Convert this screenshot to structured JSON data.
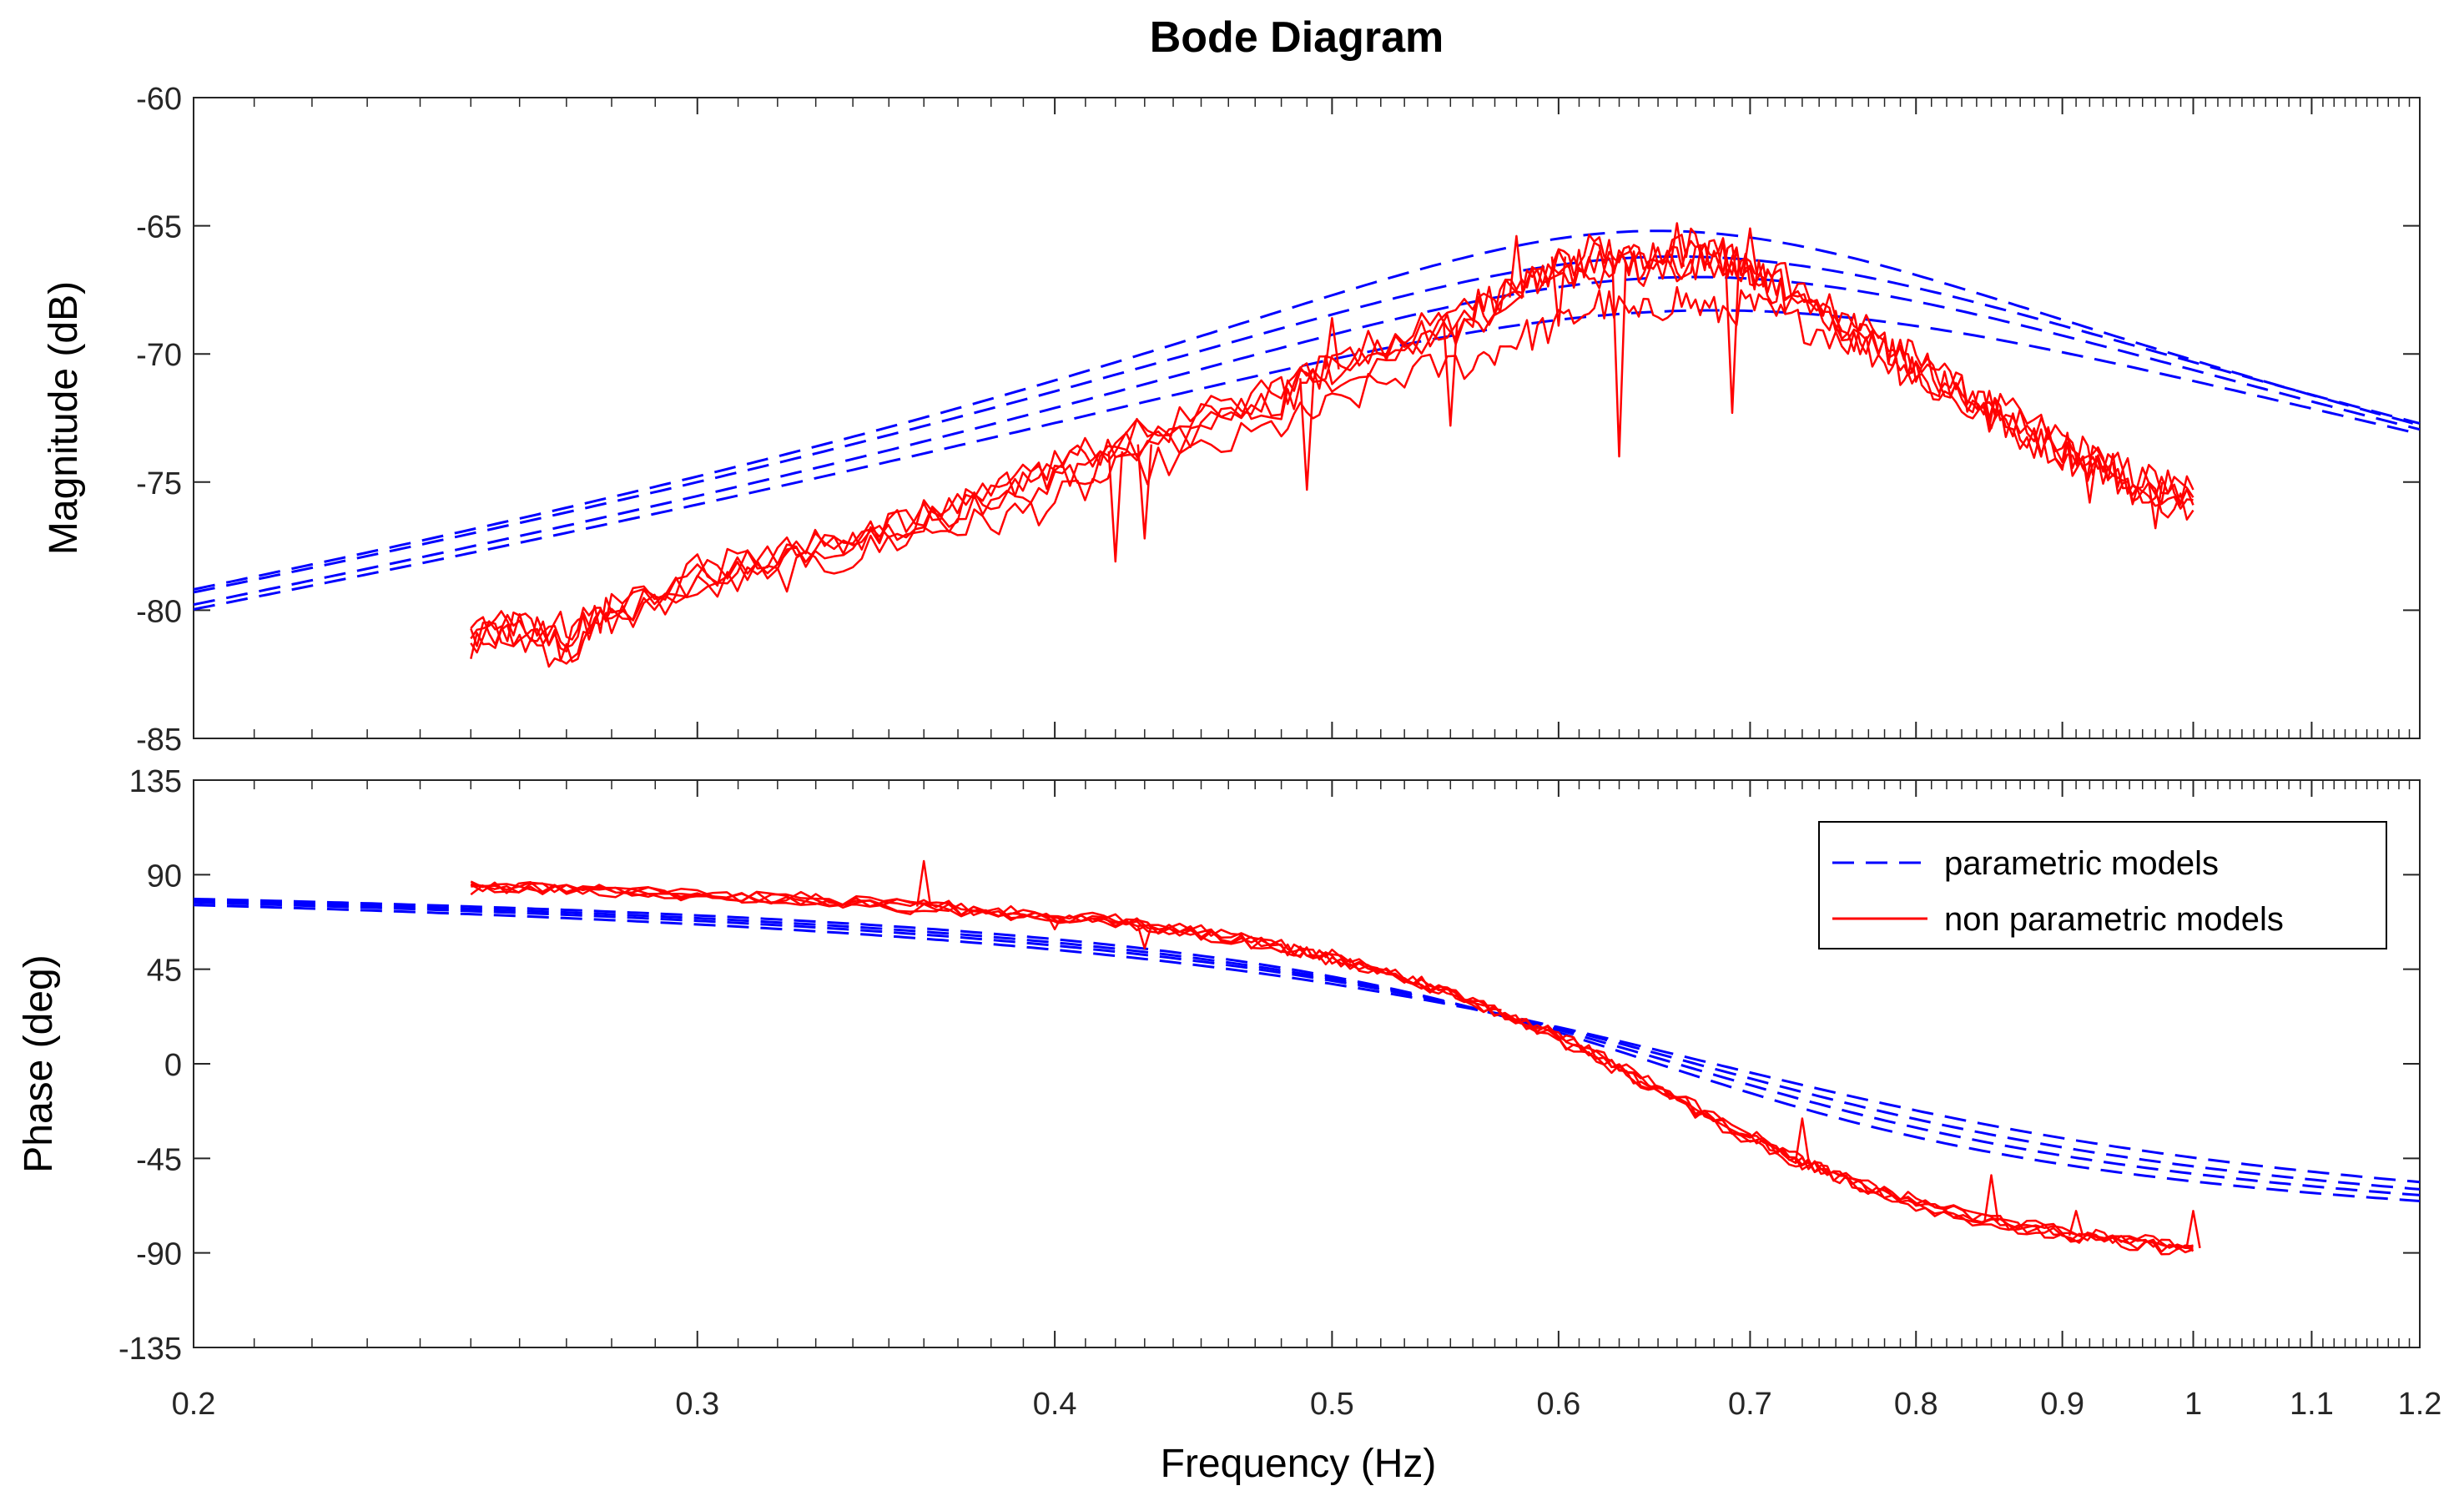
{
  "chart_data": {
    "type": "line",
    "title": "Bode Diagram",
    "xlabel": "Frequency  (Hz)",
    "xscale": "log",
    "xlim": [
      0.2,
      1.2
    ],
    "xticks": [
      0.2,
      0.3,
      0.4,
      0.5,
      0.6,
      0.7,
      0.8,
      0.9,
      1,
      1.1,
      1.2
    ],
    "xtick_labels": [
      "0.2",
      "0.3",
      "0.4",
      "0.5",
      "0.6",
      "0.7",
      "0.8",
      "0.9",
      "1",
      "1.1",
      "1.2"
    ],
    "colors": {
      "parametric": "#0000ff",
      "non_parametric": "#ff0000",
      "axis": "#262626",
      "minor_tick": "#262626"
    },
    "legend": {
      "position": "top-right of phase panel",
      "entries": [
        {
          "label": "parametric models",
          "style": "dashed",
          "color": "#0000ff"
        },
        {
          "label": "non parametric models",
          "style": "solid",
          "color": "#ff0000"
        }
      ]
    },
    "magnitude": {
      "ylabel": "Magnitude (dB)",
      "ylim": [
        -85,
        -60
      ],
      "yticks": [
        -85,
        -80,
        -75,
        -70,
        -65,
        -60
      ],
      "ytick_labels": [
        "-85",
        "-80",
        "-75",
        "-70",
        "-65",
        "-60"
      ],
      "parametric_models": [
        {
          "name": "parametric model 1",
          "peak_freq": 0.65,
          "peak_db": -65.2,
          "zeta": 0.3
        },
        {
          "name": "parametric model 2",
          "peak_freq": 0.66,
          "peak_db": -66.2,
          "zeta": 0.34
        },
        {
          "name": "parametric model 3",
          "peak_freq": 0.67,
          "peak_db": -67.0,
          "zeta": 0.36
        },
        {
          "name": "parametric model 4",
          "peak_freq": 0.68,
          "peak_db": -68.3,
          "zeta": 0.42
        }
      ],
      "non_parametric_models": [
        {
          "name": "non parametric model 1",
          "x": [
            0.25,
            0.26,
            0.27,
            0.28,
            0.3,
            0.32,
            0.34,
            0.36,
            0.38,
            0.4,
            0.42,
            0.45,
            0.48,
            0.5,
            0.53,
            0.56,
            0.58,
            0.6,
            0.62,
            0.64,
            0.66,
            0.68,
            0.7,
            0.72,
            0.75,
            0.78,
            0.8,
            0.83,
            0.86,
            0.9,
            0.93,
            0.96,
            1.0
          ],
          "y": [
            -81.5,
            -80.5,
            -81.2,
            -80.0,
            -78.9,
            -78.3,
            -77.1,
            -76.8,
            -75.4,
            -74.7,
            -73.8,
            -73.0,
            -71.3,
            -70.6,
            -69.6,
            -68.4,
            -67.8,
            -66.2,
            -66.9,
            -66.0,
            -66.6,
            -65.8,
            -66.9,
            -67.6,
            -68.7,
            -69.6,
            -70.2,
            -71.5,
            -72.3,
            -73.3,
            -74.3,
            -74.8,
            -75.6
          ]
        },
        {
          "name": "non parametric model 2",
          "x": [
            0.25,
            0.26,
            0.27,
            0.28,
            0.3,
            0.32,
            0.34,
            0.36,
            0.38,
            0.4,
            0.42,
            0.45,
            0.48,
            0.5,
            0.53,
            0.56,
            0.58,
            0.6,
            0.62,
            0.64,
            0.66,
            0.68,
            0.7,
            0.72,
            0.75,
            0.78,
            0.8,
            0.83,
            0.86,
            0.9,
            0.93,
            0.96,
            1.0
          ],
          "y": [
            -81.0,
            -80.8,
            -80.6,
            -79.8,
            -78.6,
            -77.8,
            -77.5,
            -76.2,
            -75.8,
            -74.2,
            -73.5,
            -72.4,
            -71.7,
            -70.2,
            -69.3,
            -68.9,
            -67.1,
            -66.8,
            -66.2,
            -66.9,
            -65.9,
            -66.5,
            -67.2,
            -67.1,
            -68.3,
            -69.9,
            -70.6,
            -71.2,
            -72.8,
            -73.7,
            -74.1,
            -75.2,
            -75.9
          ]
        },
        {
          "name": "non parametric model 3",
          "x": [
            0.25,
            0.26,
            0.27,
            0.28,
            0.3,
            0.32,
            0.34,
            0.36,
            0.38,
            0.4,
            0.42,
            0.45,
            0.48,
            0.5,
            0.53,
            0.56,
            0.58,
            0.6,
            0.62,
            0.64,
            0.66,
            0.68,
            0.7,
            0.72,
            0.75,
            0.78,
            0.8,
            0.83,
            0.86,
            0.9,
            0.93,
            0.96,
            1.0
          ],
          "y": [
            -81.3,
            -81.1,
            -81.8,
            -80.4,
            -79.2,
            -78.7,
            -77.9,
            -76.9,
            -76.6,
            -75.8,
            -74.7,
            -73.9,
            -72.8,
            -72.1,
            -70.8,
            -70.3,
            -69.4,
            -68.9,
            -68.0,
            -68.6,
            -67.8,
            -68.4,
            -68.1,
            -68.7,
            -69.2,
            -70.2,
            -70.9,
            -72.0,
            -72.9,
            -73.9,
            -74.6,
            -75.4,
            -76.1
          ]
        },
        {
          "name": "non parametric model 4",
          "x": [
            0.25,
            0.26,
            0.27,
            0.28,
            0.3,
            0.32,
            0.34,
            0.36,
            0.38,
            0.4,
            0.42,
            0.45,
            0.48,
            0.5,
            0.53,
            0.56,
            0.58,
            0.6,
            0.62,
            0.64,
            0.66,
            0.68,
            0.7,
            0.72,
            0.75,
            0.78,
            0.8,
            0.83,
            0.86,
            0.9,
            0.93,
            0.96,
            1.0
          ],
          "y": [
            -81.2,
            -80.2,
            -81.4,
            -80.2,
            -78.4,
            -78.1,
            -76.9,
            -76.5,
            -75.1,
            -75.2,
            -74.1,
            -72.8,
            -71.9,
            -70.8,
            -69.9,
            -68.1,
            -67.5,
            -67.2,
            -66.1,
            -66.4,
            -66.7,
            -66.2,
            -66.5,
            -67.9,
            -68.5,
            -69.4,
            -70.4,
            -71.8,
            -72.5,
            -73.5,
            -74.8,
            -75.0,
            -75.3
          ]
        },
        {
          "name": "non parametric model 5",
          "x": [
            0.25,
            0.26,
            0.27,
            0.28,
            0.3,
            0.32,
            0.34,
            0.36,
            0.38,
            0.4,
            0.42,
            0.45,
            0.48,
            0.5,
            0.53,
            0.56,
            0.58,
            0.6,
            0.62,
            0.64,
            0.66,
            0.68,
            0.7,
            0.72,
            0.75,
            0.78,
            0.8,
            0.83,
            0.86,
            0.9,
            0.93,
            0.96,
            1.0
          ],
          "y": [
            -80.9,
            -80.7,
            -80.9,
            -80.0,
            -78.8,
            -77.9,
            -77.4,
            -76.4,
            -75.6,
            -74.5,
            -73.4,
            -72.6,
            -71.5,
            -70.4,
            -69.1,
            -68.6,
            -67.3,
            -66.5,
            -65.8,
            -66.7,
            -65.5,
            -66.0,
            -66.8,
            -67.4,
            -68.9,
            -69.8,
            -70.7,
            -71.3,
            -72.6,
            -73.6,
            -74.4,
            -75.3,
            -75.7
          ]
        }
      ],
      "spikes": [
        {
          "x": 0.42,
          "y": -78.1
        },
        {
          "x": 0.43,
          "y": -77.2
        },
        {
          "x": 0.49,
          "y": -75.3
        },
        {
          "x": 0.5,
          "y": -68.6
        },
        {
          "x": 0.55,
          "y": -72.8
        },
        {
          "x": 0.58,
          "y": -65.4
        },
        {
          "x": 0.6,
          "y": -68.9
        },
        {
          "x": 0.63,
          "y": -74.0
        },
        {
          "x": 0.66,
          "y": -64.9
        },
        {
          "x": 0.69,
          "y": -72.3
        },
        {
          "x": 0.7,
          "y": -65.1
        },
        {
          "x": 0.85,
          "y": -72.9
        },
        {
          "x": 0.92,
          "y": -75.8
        },
        {
          "x": 0.97,
          "y": -76.8
        }
      ]
    },
    "phase": {
      "ylabel": "Phase (deg)",
      "ylim": [
        -135,
        135
      ],
      "yticks": [
        -135,
        -90,
        -45,
        0,
        45,
        90,
        135
      ],
      "ytick_labels": [
        "-135",
        "-90",
        "-45",
        "0",
        "45",
        "90",
        "135"
      ],
      "parametric_models": [
        {
          "name": "parametric phase 1",
          "center_freq": 0.65,
          "zeta": 0.3
        },
        {
          "name": "parametric phase 2",
          "center_freq": 0.66,
          "zeta": 0.33
        },
        {
          "name": "parametric phase 3",
          "center_freq": 0.67,
          "zeta": 0.36
        },
        {
          "name": "parametric phase 4",
          "center_freq": 0.68,
          "zeta": 0.4
        }
      ],
      "non_parametric_models": [
        {
          "name": "non parametric phase 1",
          "x": [
            0.25,
            0.27,
            0.3,
            0.33,
            0.36,
            0.39,
            0.42,
            0.45,
            0.48,
            0.5,
            0.53,
            0.56,
            0.6,
            0.63,
            0.66,
            0.7,
            0.73,
            0.76,
            0.8,
            0.85,
            0.9,
            0.95,
            1.0
          ],
          "y": [
            84.5,
            83.0,
            80.6,
            77.9,
            74.8,
            71.4,
            67.5,
            62.0,
            55.4,
            50.1,
            41.2,
            30.0,
            12.8,
            -2.0,
            -17.1,
            -35.2,
            -47.0,
            -56.3,
            -66.1,
            -75.0,
            -81.0,
            -85.0,
            -87.7
          ]
        },
        {
          "name": "non parametric phase 2",
          "x": [
            0.25,
            0.27,
            0.3,
            0.33,
            0.36,
            0.39,
            0.42,
            0.45,
            0.48,
            0.5,
            0.53,
            0.56,
            0.6,
            0.63,
            0.66,
            0.7,
            0.73,
            0.76,
            0.8,
            0.85,
            0.9,
            0.95,
            1.0
          ],
          "y": [
            86.0,
            82.1,
            81.7,
            76.5,
            76.1,
            70.2,
            68.4,
            60.8,
            56.7,
            48.8,
            42.5,
            28.7,
            14.1,
            -0.7,
            -15.6,
            -33.8,
            -45.7,
            -57.6,
            -64.8,
            -73.7,
            -79.7,
            -83.6,
            -86.4
          ]
        },
        {
          "name": "non parametric phase 3",
          "x": [
            0.25,
            0.27,
            0.3,
            0.33,
            0.36,
            0.39,
            0.42,
            0.45,
            0.48,
            0.5,
            0.53,
            0.56,
            0.6,
            0.63,
            0.66,
            0.7,
            0.73,
            0.76,
            0.8,
            0.85,
            0.9,
            0.95,
            1.0
          ],
          "y": [
            83.2,
            84.2,
            79.4,
            79.0,
            73.5,
            72.6,
            66.1,
            63.3,
            54.1,
            51.5,
            39.9,
            31.4,
            11.5,
            -3.4,
            -18.4,
            -36.6,
            -48.3,
            -55.0,
            -67.4,
            -76.3,
            -82.4,
            -86.3,
            -89.1
          ]
        },
        {
          "name": "non parametric phase 4",
          "x": [
            0.25,
            0.27,
            0.3,
            0.33,
            0.36,
            0.39,
            0.42,
            0.45,
            0.48,
            0.5,
            0.53,
            0.56,
            0.6,
            0.63,
            0.66,
            0.7,
            0.73,
            0.76,
            0.8,
            0.85,
            0.9,
            0.95,
            1.0
          ],
          "y": [
            85.2,
            82.6,
            80.1,
            78.4,
            75.5,
            70.8,
            67.0,
            62.7,
            56.0,
            49.4,
            41.9,
            29.3,
            13.4,
            -1.4,
            -16.3,
            -34.5,
            -46.4,
            -56.9,
            -65.5,
            -74.4,
            -80.3,
            -84.4,
            -87.0
          ]
        },
        {
          "name": "non parametric phase 5",
          "x": [
            0.25,
            0.27,
            0.3,
            0.33,
            0.36,
            0.39,
            0.42,
            0.45,
            0.48,
            0.5,
            0.53,
            0.56,
            0.6,
            0.63,
            0.66,
            0.7,
            0.73,
            0.76,
            0.8,
            0.85,
            0.9,
            0.95,
            1.0
          ],
          "y": [
            84.0,
            83.5,
            81.0,
            77.5,
            74.3,
            71.9,
            68.0,
            61.5,
            55.0,
            50.6,
            40.6,
            30.6,
            12.2,
            -2.6,
            -17.6,
            -35.8,
            -47.6,
            -55.7,
            -66.7,
            -75.6,
            -81.6,
            -85.6,
            -88.3
          ]
        }
      ],
      "spikes": [
        {
          "x": 0.36,
          "y": 96.5
        },
        {
          "x": 0.4,
          "y": 64.0
        },
        {
          "x": 0.43,
          "y": 55.0
        },
        {
          "x": 0.57,
          "y": 26.0
        },
        {
          "x": 0.73,
          "y": -26.0
        },
        {
          "x": 0.85,
          "y": -53.0
        },
        {
          "x": 0.91,
          "y": -70.0
        },
        {
          "x": 1.0,
          "y": -70.0
        }
      ]
    }
  }
}
